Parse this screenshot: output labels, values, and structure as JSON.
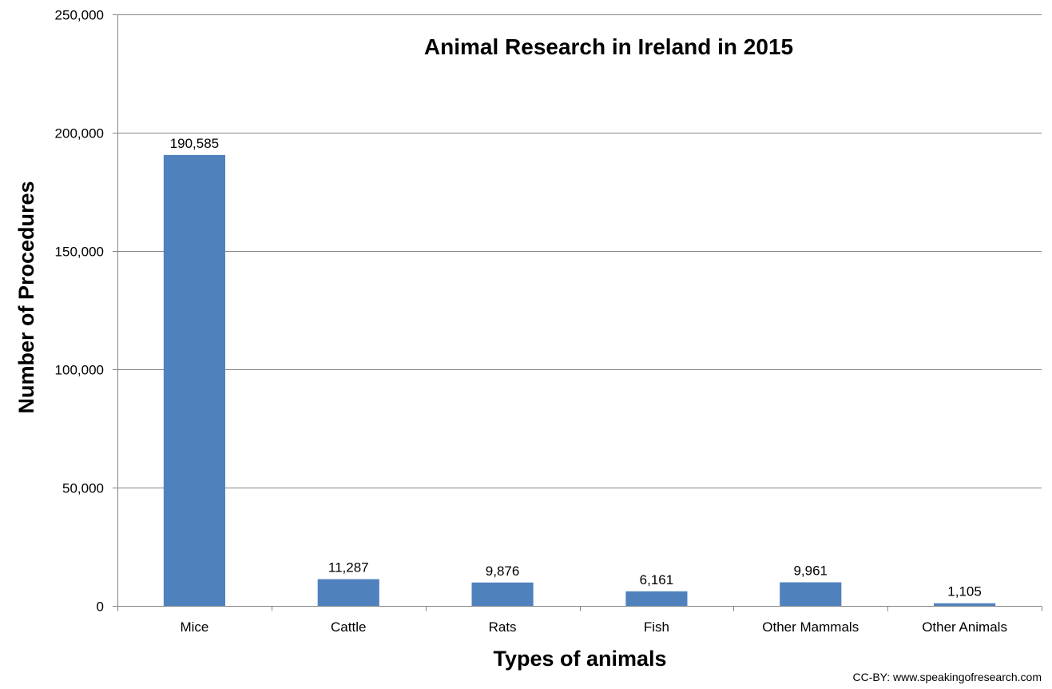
{
  "chart_data": {
    "type": "bar",
    "title": "Animal Research  in Ireland in 2015",
    "xlabel": "Types of animals",
    "ylabel": "Number of Procedures",
    "categories": [
      "Mice",
      "Cattle",
      "Rats",
      "Fish",
      "Other Mammals",
      "Other Animals"
    ],
    "values": [
      190585,
      11287,
      9876,
      6161,
      9961,
      1105
    ],
    "value_labels": [
      "190,585",
      "11,287",
      "9,876",
      "6,161",
      "9,961",
      "1,105"
    ],
    "ylim": [
      0,
      250000
    ],
    "yticks": [
      0,
      50000,
      100000,
      150000,
      200000,
      250000
    ],
    "ytick_labels": [
      "0",
      "50,000",
      "100,000",
      "150,000",
      "200,000",
      "250,000"
    ],
    "grid": true,
    "legend": "none",
    "bar_color": "#4f81bd",
    "grid_color": "#868686"
  },
  "credit": "CC-BY: www.speakingofresearch.com"
}
